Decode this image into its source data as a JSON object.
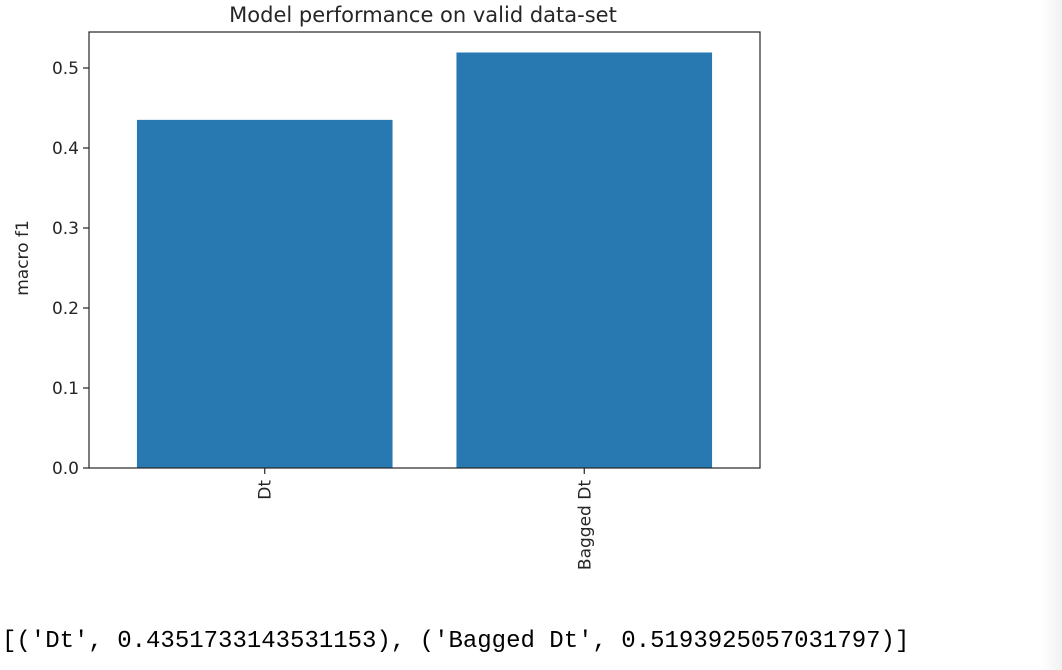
{
  "chart_data": {
    "type": "bar",
    "title": "Model performance on valid data-set",
    "xlabel": "",
    "ylabel": "macro f1",
    "categories": [
      "Dt",
      "Bagged Dt"
    ],
    "values": [
      0.4351733143531153,
      0.5193925057031797
    ],
    "ylim": [
      0,
      0.545
    ],
    "yticks": [
      0.0,
      0.1,
      0.2,
      0.3,
      0.4,
      0.5
    ],
    "ytick_labels": [
      "0.0",
      "0.1",
      "0.2",
      "0.3",
      "0.4",
      "0.5"
    ],
    "grid": false,
    "bar_color": "#2878b2"
  },
  "output": {
    "text": "[('Dt', 0.4351733143531153), ('Bagged Dt', 0.5193925057031797)]"
  }
}
